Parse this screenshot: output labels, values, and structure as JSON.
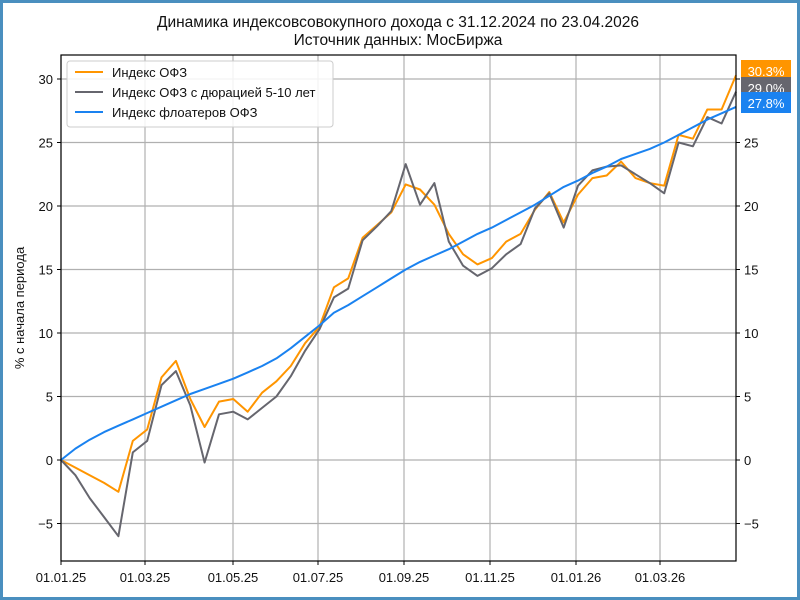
{
  "chart_data": {
    "type": "line",
    "title": "Динамика индексовсовокупного дохода с 31.12.2024 по 23.04.2026",
    "subtitle": "Источник данных: МосБиржа",
    "xlabel": "",
    "ylabel": "% с начала периода",
    "ylim": [
      -8,
      32
    ],
    "yticks": [
      -5,
      0,
      5,
      10,
      15,
      20,
      25,
      30
    ],
    "xticks": [
      "01.01.25",
      "01.03.25",
      "01.05.25",
      "01.07.25",
      "01.09.25",
      "01.11.25",
      "01.01.26",
      "01.03.26"
    ],
    "grid": true,
    "legend_position": "upper left",
    "x": [
      "31.12.24",
      "10.01.25",
      "20.01.25",
      "31.01.25",
      "10.02.25",
      "20.02.25",
      "28.02.25",
      "10.03.25",
      "20.03.25",
      "31.03.25",
      "10.04.25",
      "20.04.25",
      "30.04.25",
      "10.05.25",
      "20.05.25",
      "31.05.25",
      "10.06.25",
      "20.06.25",
      "30.06.25",
      "10.07.25",
      "20.07.25",
      "31.07.25",
      "10.08.25",
      "20.08.25",
      "31.08.25",
      "10.09.25",
      "20.09.25",
      "30.09.25",
      "10.10.25",
      "20.10.25",
      "31.10.25",
      "10.11.25",
      "20.11.25",
      "30.11.25",
      "10.12.25",
      "20.12.25",
      "31.12.25",
      "10.01.26",
      "20.01.26",
      "31.01.26",
      "10.02.26",
      "20.02.26",
      "28.02.26",
      "10.03.26",
      "20.03.26",
      "31.03.26",
      "10.04.26",
      "23.04.26"
    ],
    "series": [
      {
        "name": "Индекс ОФЗ",
        "color": "#ff9500",
        "last_label": "30.3%",
        "values": [
          0,
          -0.6,
          -1.2,
          -1.8,
          -2.5,
          1.5,
          2.4,
          6.5,
          7.8,
          4.8,
          2.6,
          4.6,
          4.8,
          3.8,
          5.3,
          6.2,
          7.4,
          9.2,
          10.5,
          13.6,
          14.3,
          17.5,
          18.5,
          19.5,
          21.7,
          21.3,
          20.1,
          17.8,
          16.2,
          15.4,
          15.9,
          17.2,
          17.8,
          19.7,
          21.1,
          18.7,
          20.9,
          22.2,
          22.4,
          23.5,
          22.2,
          21.8,
          21.6,
          25.6,
          25.3,
          27.6,
          27.6,
          30.3
        ]
      },
      {
        "name": "Индекс ОФЗ с дюрацией 5-10 лет",
        "color": "#66666e",
        "last_label": "29.0%",
        "values": [
          0,
          -1.2,
          -3.0,
          -4.5,
          -6.0,
          0.6,
          1.5,
          5.9,
          7.0,
          4.3,
          -0.2,
          3.6,
          3.8,
          3.2,
          4.1,
          5.0,
          6.6,
          8.6,
          10.3,
          12.8,
          13.5,
          17.3,
          18.4,
          19.6,
          23.3,
          20.1,
          21.8,
          17.2,
          15.3,
          14.5,
          15.1,
          16.2,
          17.0,
          19.8,
          21.0,
          18.3,
          21.6,
          22.8,
          23.1,
          23.2,
          22.5,
          21.8,
          21.0,
          25.0,
          24.7,
          27.0,
          26.5,
          29.0
        ]
      },
      {
        "name": "Индекс флоатеров ОФЗ",
        "color": "#1a82f0",
        "last_label": "27.8%",
        "values": [
          0,
          0.9,
          1.6,
          2.2,
          2.7,
          3.2,
          3.7,
          4.2,
          4.7,
          5.2,
          5.6,
          6.0,
          6.4,
          6.9,
          7.4,
          8.0,
          8.8,
          9.7,
          10.6,
          11.6,
          12.2,
          12.9,
          13.6,
          14.3,
          15.0,
          15.6,
          16.1,
          16.6,
          17.2,
          17.8,
          18.3,
          18.9,
          19.5,
          20.1,
          20.8,
          21.5,
          22.0,
          22.6,
          23.1,
          23.7,
          24.1,
          24.5,
          25.0,
          25.6,
          26.2,
          26.8,
          27.3,
          27.8
        ]
      }
    ]
  }
}
